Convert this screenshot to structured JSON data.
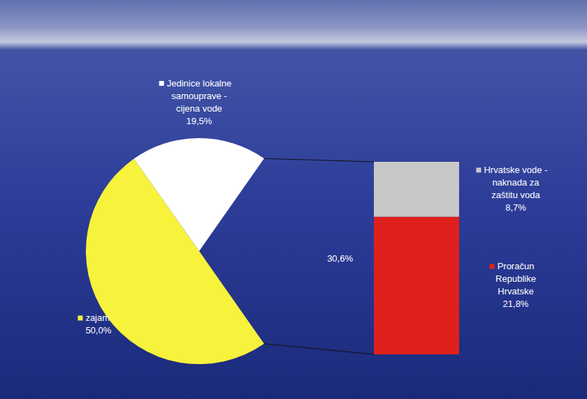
{
  "chart_data": [
    {
      "type": "pie",
      "categories": [
        "zajam",
        "Jedinice lokalne samouprave - cijena vode",
        null
      ],
      "values": [
        50.0,
        19.5,
        30.6
      ],
      "value_labels": [
        "50,0%",
        "19,5%",
        "30,6%"
      ],
      "colors": [
        "#f7f23c",
        "#ffffff",
        "none"
      ],
      "data_labels": true
    },
    {
      "type": "bar",
      "stacked": true,
      "series": [
        {
          "name": "Proračun Republike Hrvatske",
          "color": "#e0201c",
          "values": [
            21.8
          ],
          "value_labels": [
            "21,8%"
          ]
        },
        {
          "name": "Hrvatske vode - naknada za zaštitu voda",
          "color": "#c8c8c8",
          "values": [
            8.7
          ],
          "value_labels": [
            "8,7%"
          ]
        }
      ],
      "data_labels": true,
      "tick_labels": false
    }
  ]
}
